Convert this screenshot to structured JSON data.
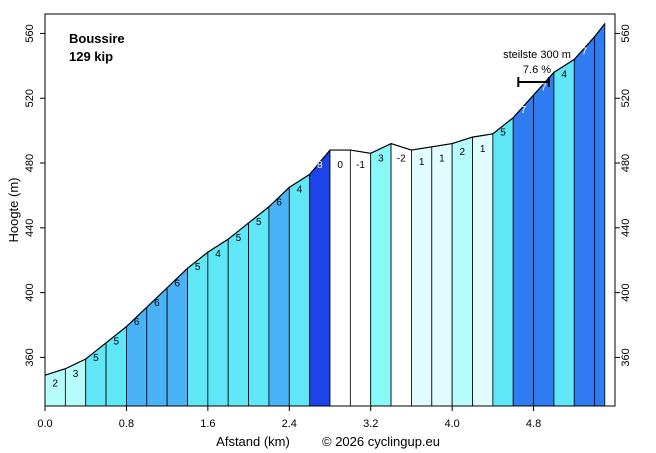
{
  "chart_data": {
    "type": "area",
    "title": "Boussire",
    "subtitle": "129 kip",
    "xlabel": "Afstand (km)",
    "ylabel": "Hoogte (m)",
    "credit": "© 2026 cyclingup.eu",
    "steepest": {
      "label": "steilste 300 m",
      "value": "7.6 %",
      "from_km": 4.65,
      "to_km": 4.95
    },
    "xlim": [
      0,
      5.6
    ],
    "ylim": [
      330,
      572
    ],
    "x_ticks": [
      "0.0",
      "0.8",
      "1.6",
      "2.4",
      "3.2",
      "4.0",
      "4.8"
    ],
    "x_tick_values": [
      0.0,
      0.8,
      1.6,
      2.4,
      3.2,
      4.0,
      4.8
    ],
    "y_ticks": [
      "360",
      "400",
      "440",
      "480",
      "520",
      "560"
    ],
    "y_tick_values": [
      360,
      400,
      440,
      480,
      520,
      560
    ],
    "segments": [
      {
        "x0": 0.0,
        "x1": 0.2,
        "y0": 349,
        "y1": 353,
        "grade": "2",
        "color": "#b7fcfc"
      },
      {
        "x0": 0.2,
        "x1": 0.4,
        "y0": 353,
        "y1": 359,
        "grade": "3",
        "color": "#b7fcfc"
      },
      {
        "x0": 0.4,
        "x1": 0.6,
        "y0": 359,
        "y1": 369,
        "grade": "5",
        "color": "#5fe6f7"
      },
      {
        "x0": 0.6,
        "x1": 0.8,
        "y0": 369,
        "y1": 379,
        "grade": "5",
        "color": "#5fe6f7"
      },
      {
        "x0": 0.8,
        "x1": 1.0,
        "y0": 379,
        "y1": 391,
        "grade": "6",
        "color": "#4ab3f7"
      },
      {
        "x0": 1.0,
        "x1": 1.2,
        "y0": 391,
        "y1": 403,
        "grade": "6",
        "color": "#4ab3f7"
      },
      {
        "x0": 1.2,
        "x1": 1.4,
        "y0": 403,
        "y1": 415,
        "grade": "6",
        "color": "#4ab3f7"
      },
      {
        "x0": 1.4,
        "x1": 1.6,
        "y0": 415,
        "y1": 425,
        "grade": "5",
        "color": "#5fe6f7"
      },
      {
        "x0": 1.6,
        "x1": 1.8,
        "y0": 425,
        "y1": 433,
        "grade": "4",
        "color": "#5fe6f7"
      },
      {
        "x0": 1.8,
        "x1": 2.0,
        "y0": 433,
        "y1": 443,
        "grade": "5",
        "color": "#5fe6f7"
      },
      {
        "x0": 2.0,
        "x1": 2.2,
        "y0": 443,
        "y1": 453,
        "grade": "5",
        "color": "#5fe6f7"
      },
      {
        "x0": 2.2,
        "x1": 2.4,
        "y0": 453,
        "y1": 465,
        "grade": "6",
        "color": "#4ab3f7"
      },
      {
        "x0": 2.4,
        "x1": 2.6,
        "y0": 465,
        "y1": 473,
        "grade": "4",
        "color": "#5fe6f7"
      },
      {
        "x0": 2.6,
        "x1": 2.8,
        "y0": 473,
        "y1": 488,
        "grade": "8",
        "color": "#1c44e8"
      },
      {
        "x0": 2.8,
        "x1": 3.0,
        "y0": 488,
        "y1": 488,
        "grade": "0",
        "color": "#ffffff"
      },
      {
        "x0": 3.0,
        "x1": 3.2,
        "y0": 488,
        "y1": 486,
        "grade": "-1",
        "color": "#ffffff"
      },
      {
        "x0": 3.2,
        "x1": 3.4,
        "y0": 486,
        "y1": 492,
        "grade": "3",
        "color": "#87f9f9"
      },
      {
        "x0": 3.4,
        "x1": 3.6,
        "y0": 492,
        "y1": 488,
        "grade": "-2",
        "color": "#ffffff"
      },
      {
        "x0": 3.6,
        "x1": 3.8,
        "y0": 488,
        "y1": 490,
        "grade": "1",
        "color": "#e0fcfc"
      },
      {
        "x0": 3.8,
        "x1": 4.0,
        "y0": 490,
        "y1": 492,
        "grade": "1",
        "color": "#e0fcfc"
      },
      {
        "x0": 4.0,
        "x1": 4.2,
        "y0": 492,
        "y1": 496,
        "grade": "2",
        "color": "#b7fcfc"
      },
      {
        "x0": 4.2,
        "x1": 4.4,
        "y0": 496,
        "y1": 498,
        "grade": "1",
        "color": "#e0fcfc"
      },
      {
        "x0": 4.4,
        "x1": 4.6,
        "y0": 498,
        "y1": 508,
        "grade": "5",
        "color": "#5fe6f7"
      },
      {
        "x0": 4.6,
        "x1": 4.8,
        "y0": 508,
        "y1": 522,
        "grade": "7",
        "color": "#2e7bf2"
      },
      {
        "x0": 4.8,
        "x1": 5.0,
        "y0": 522,
        "y1": 536,
        "grade": "7",
        "color": "#2e7bf2"
      },
      {
        "x0": 5.0,
        "x1": 5.2,
        "y0": 536,
        "y1": 544,
        "grade": "4",
        "color": "#5fe6f7"
      },
      {
        "x0": 5.2,
        "x1": 5.4,
        "y0": 544,
        "y1": 558,
        "grade": "7",
        "color": "#2e7bf2"
      },
      {
        "x0": 5.4,
        "x1": 5.5,
        "y0": 558,
        "y1": 566,
        "grade": "",
        "color": "#2e7bf2"
      }
    ]
  }
}
